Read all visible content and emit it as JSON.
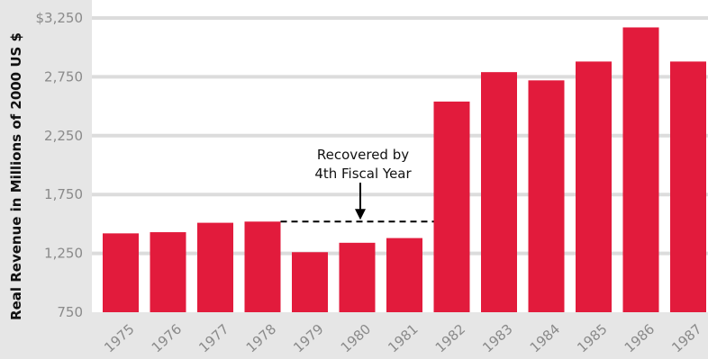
{
  "chart_data": {
    "type": "bar",
    "ylabel": "Real Revenue in Millions of 2000 US $",
    "ylim": [
      750,
      3250
    ],
    "yticks": [
      750,
      1250,
      1750,
      2250,
      2750,
      3250
    ],
    "ytick_labels": [
      "750",
      "1,250",
      "1,750",
      "2,250",
      "2,750",
      "$3,250"
    ],
    "categories": [
      "1975",
      "1976",
      "1977",
      "1978",
      "1979",
      "1980",
      "1981",
      "1982",
      "1983",
      "1984",
      "1985",
      "1986",
      "1987"
    ],
    "values": [
      1420,
      1430,
      1510,
      1520,
      1260,
      1340,
      1380,
      2540,
      2790,
      2720,
      2880,
      3170,
      2880
    ],
    "grid": true,
    "bar_color": "#e21b3c",
    "annotation": {
      "line1": "Recovered by",
      "line2": "4th Fiscal Year",
      "level": 1520,
      "from_category": "1978",
      "to_category": "1982"
    }
  }
}
